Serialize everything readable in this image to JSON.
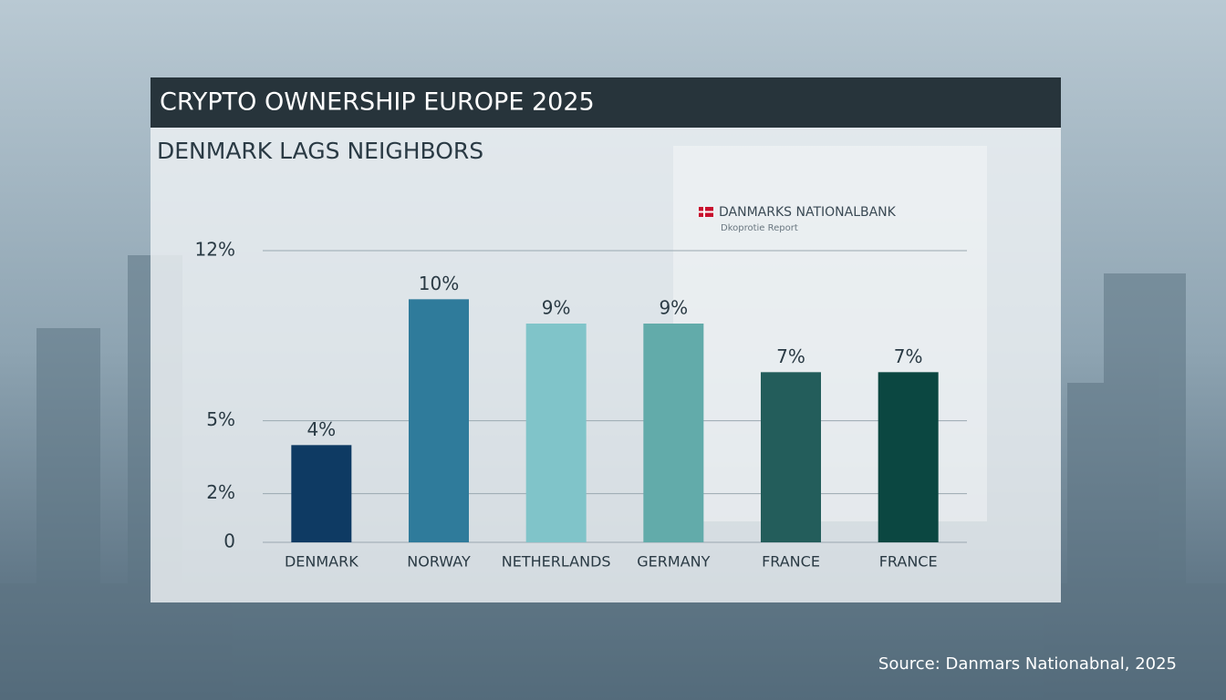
{
  "chart_data": {
    "type": "bar",
    "title": "CRYPTO OWNERSHIP EUROPE 2025",
    "subtitle": "DENMARK LAGS NEIGHBORS",
    "inset_title": "DANMARKS NATIONALBANK",
    "inset_subtitle": "Dkoprotie Report",
    "source": "Source: Danmars Nationabnal, 2025",
    "categories": [
      "DENMARK",
      "NORWAY",
      "NETHERLANDS",
      "GERMANY",
      "FRANCE",
      "FRANCE"
    ],
    "values": [
      4,
      10,
      9,
      9,
      7,
      7
    ],
    "value_labels": [
      "4%",
      "10%",
      "9%",
      "9%",
      "7%",
      "7%"
    ],
    "colors": [
      "#0e3a63",
      "#2f7b9b",
      "#80c4c9",
      "#62abaa",
      "#235d5b",
      "#0b4741"
    ],
    "ylim": [
      0,
      12
    ],
    "yticks": [
      0,
      {
        "value": 5,
        "label": "5%"
      },
      {
        "value": 2,
        "label": "2%"
      },
      {
        "value": 12,
        "label": "12%"
      }
    ],
    "grid": true
  }
}
